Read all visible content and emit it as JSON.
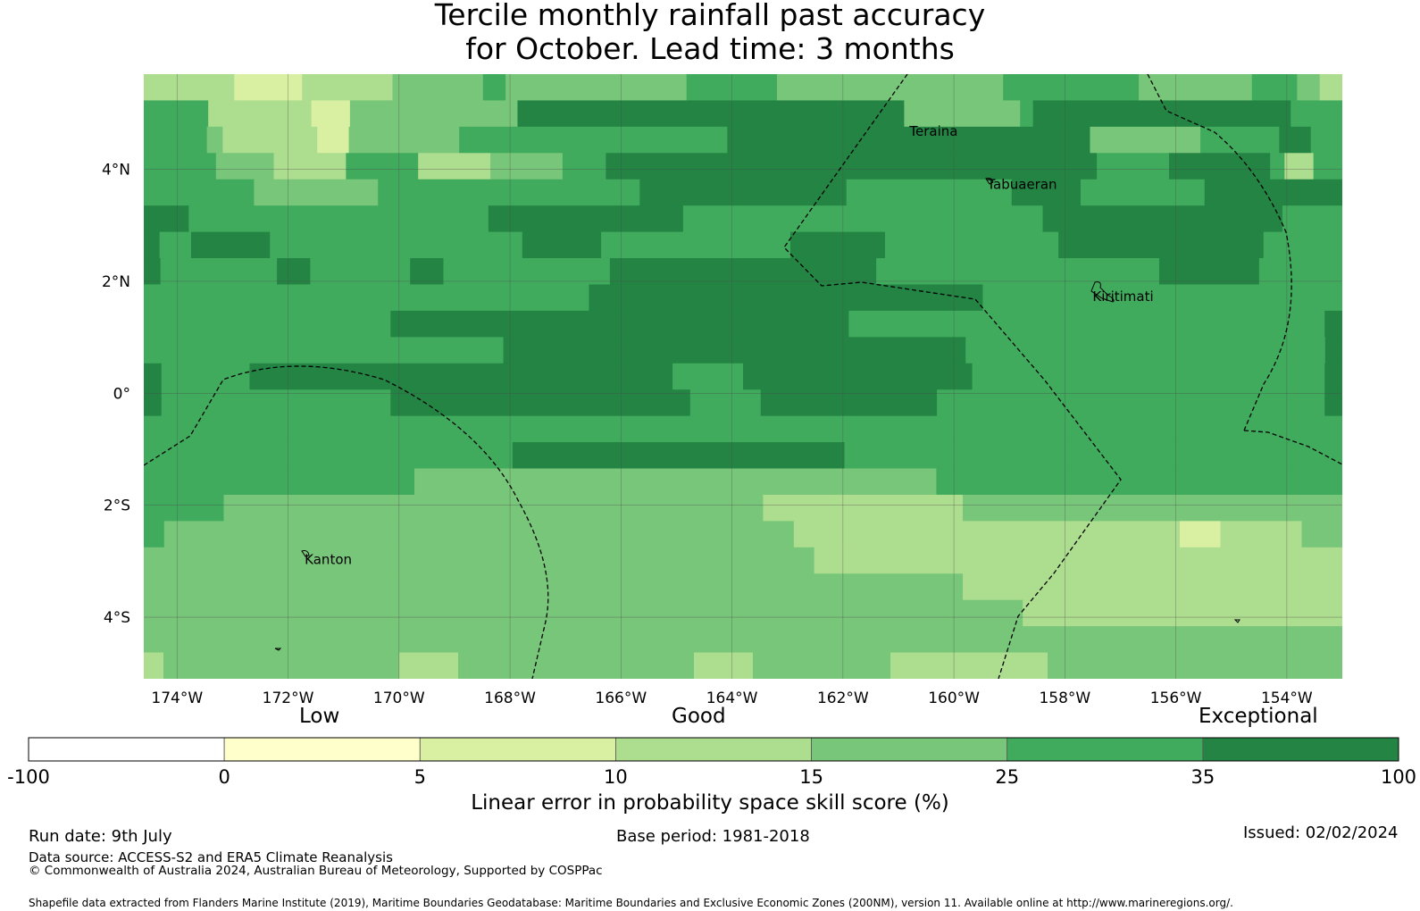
{
  "title": {
    "line1": "Tercile monthly rainfall past accuracy",
    "line2": "for October. Lead time: 3 months"
  },
  "map": {
    "lon_range": [
      -174.6,
      -153.0
    ],
    "lat_range": [
      -5.1,
      5.7
    ],
    "lon_ticks": [
      {
        "value": -174,
        "label": "174°W"
      },
      {
        "value": -172,
        "label": "172°W"
      },
      {
        "value": -170,
        "label": "170°W"
      },
      {
        "value": -168,
        "label": "168°W"
      },
      {
        "value": -166,
        "label": "166°W"
      },
      {
        "value": -164,
        "label": "164°W"
      },
      {
        "value": -162,
        "label": "162°W"
      },
      {
        "value": -160,
        "label": "160°W"
      },
      {
        "value": -158,
        "label": "158°W"
      },
      {
        "value": -156,
        "label": "156°W"
      },
      {
        "value": -154,
        "label": "154°W"
      }
    ],
    "lat_ticks": [
      {
        "value": 4,
        "label": "4°N"
      },
      {
        "value": 2,
        "label": "2°N"
      },
      {
        "value": 0,
        "label": "0°"
      },
      {
        "value": -2,
        "label": "2°S"
      },
      {
        "value": -4,
        "label": "4°S"
      }
    ],
    "places": [
      {
        "name": "Teraina",
        "lon": -160.8,
        "lat": 4.6
      },
      {
        "name": "Tabuaeran",
        "lon": -159.4,
        "lat": 3.65
      },
      {
        "name": "Kiritimati",
        "lon": -157.5,
        "lat": 1.65
      },
      {
        "name": "Kanton",
        "lon": -171.7,
        "lat": -3.05
      }
    ],
    "grid_legend": "a=#d9f0a3 b=#addd8e c=#78c679 d=#41ab5d e=#238443",
    "grid_rows": [
      "bbbbaaabbbbccccdccccccccddddccccccccccddddddcccccddcb",
      "dddddbbbbbbbbaaaccccccccccccceeeeeeeeeeeeeeeeeeeeeeeeeeeeeecccccccccdeeeeeeeeeeeeeeeeeeeedddd",
      "ddddcbbbbbbaacccccccdddddddddddddddddeeeeeeeeeeeeeeeeeeeeeeecccccccdddddeedd",
      "dddddccccbbbbbdddddbbbbbcccccdddeeeeeeeeeeeeeeeeeeeeeeeeeeeeeeeeeedddddeeeeeeedbbdd",
      "ddddddddcccccccccdddddddddddddddddddeeeeeeeeeeeeeeeddddddddddddeeeeedddddddddeeeeeeeeee",
      "eeeddddddddddddddddddddeeeeeeeeeeeeeddddddddddddddddddddddddeeeeeeeeeeeeeeeedddd",
      "eddeeeeeddddddddddddddddeeeeeddddddddddddeeeeeedddddddddddeeeeeeeeeeeeeddddd",
      "edddddddeeddddddeeddddddddddeeeeeeeeeeeeeeeedddddddddddddddddeeeeeeddddd",
      "ddddddddddddddddddddddddddeeeeeeeeeeeeeeeeeeeeeeeddddddddddddddddddddd",
      "ddddddddddddddeeeeeeeeeeeeeeeeeeeeeeeeeeddddddddddddddddddddddddddde",
      "dddddddddddddddddddddeeeeeeeeeeeeeeeeeeeeeeeeeeeddddddddddddddddddddde",
      "edddddeeeeeeeeeeeeeeeeeeeeeeeeddddeeeeeeeeeeeeedddddddddddddddddddde",
      "edddddddddddddeeeeeeeeeeeeeeeeeddddeeeeeeeeeedddddddddddddddddddddde",
      "dddddddddddddddddddddddddddddddddddddddddddddddddddddddddddddddddd",
      "ddddddddddddddddddddeeeeeeeeeeeeeeeeeeddddddddddddddddddddddddddd",
      "ddddddddddddddcccccccccccccccccccccccccccddddddddddddddddddddd",
      "ddddcccccccccccccccccccccccccccbbbbbbbbbbccccccccccccccccccc",
      "dcccccccccccccccccccccccccccccccbbbbbbbbbbbbbbbbbbbaabbbbcc",
      "cccccccccccccccccccccccccccccccccbbbbbbbbbbbbbbbbbbbbbbbbbb",
      "cccccccccccccccccccccccccccccccccccccccccbbbbbbbbbbbbbbbbbbb",
      "ccccccccccccccccccccccccccccccccccccccccccccbbbbbbbbbbbbbbbb",
      "ccccccccccccccccccccccccccccccccccccccccccccccccccccccccccccc",
      "bccccccccccccbbbccccccccccccbbbcccccccbbbbbbbbccccccccccccccc"
    ]
  },
  "colorbar": {
    "category_labels": [
      "Low",
      "Good",
      "Exceptional"
    ],
    "boundaries": [
      "-100",
      "0",
      "5",
      "10",
      "15",
      "25",
      "35",
      "100"
    ],
    "colors": [
      "#ffffff",
      "#ffffcc",
      "#d9f0a3",
      "#addd8e",
      "#78c679",
      "#41ab5d",
      "#238443"
    ],
    "label": "Linear error in probability space skill score (%)"
  },
  "footer": {
    "run_date": "Run date: 9th July",
    "base_period": "Base period: 1981-2018",
    "issued": "Issued: 02/02/2024",
    "data_source": "Data source: ACCESS-S2 and ERA5 Climate Reanalysis",
    "copyright": "© Commonwealth of Australia 2024, Australian Bureau of Meteorology, Supported by COSPPac",
    "shapefile": "Shapefile data extracted from Flanders Marine Institute (2019), Maritime Boundaries Geodatabase: Maritime Boundaries and Exclusive Economic Zones (200NM), version 11. Available online at http://www.marineregions.org/."
  }
}
